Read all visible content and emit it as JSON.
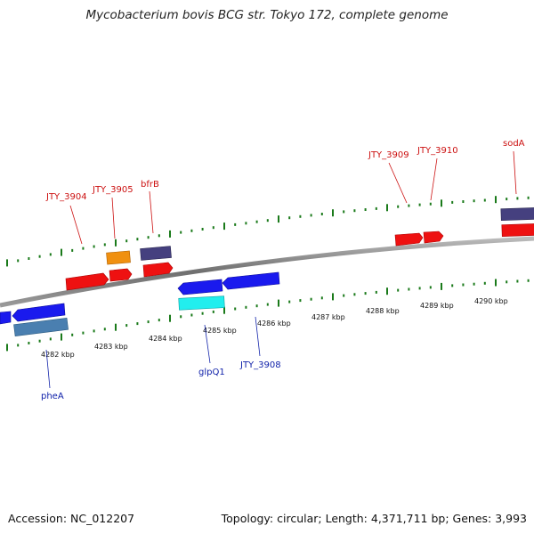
{
  "title": "Mycobacterium bovis BCG str. Tokyo 172, complete genome",
  "footer": {
    "accession": "Accession: NC_012207",
    "summary": "Topology: circular; Length: 4,371,711 bp; Genes: 3,993"
  },
  "colors": {
    "red": "#ee1111",
    "blue": "#1a1aee",
    "navy": "#45407f",
    "orange": "#f09010",
    "cyan": "#22eeee",
    "steelblue": "#4a7fb0",
    "tick_green": "#1a7a1a",
    "backbone": "#777777",
    "label_top": "#cc1111",
    "label_bottom": "#1122aa"
  },
  "genes_top": [
    {
      "name": "JTY_3904"
    },
    {
      "name": "JTY_3905"
    },
    {
      "name": "bfrB"
    },
    {
      "name": "JTY_3909"
    },
    {
      "name": "JTY_3910"
    },
    {
      "name": "sodA"
    }
  ],
  "genes_bottom": [
    {
      "name": "pheA"
    },
    {
      "name": "glpQ1"
    },
    {
      "name": "JTY_3908"
    }
  ],
  "ticks": [
    "4282 kbp",
    "4283 kbp",
    "4284 kbp",
    "4285 kbp",
    "4286 kbp",
    "4287 kbp",
    "4288 kbp",
    "4289 kbp",
    "4290 kbp"
  ]
}
